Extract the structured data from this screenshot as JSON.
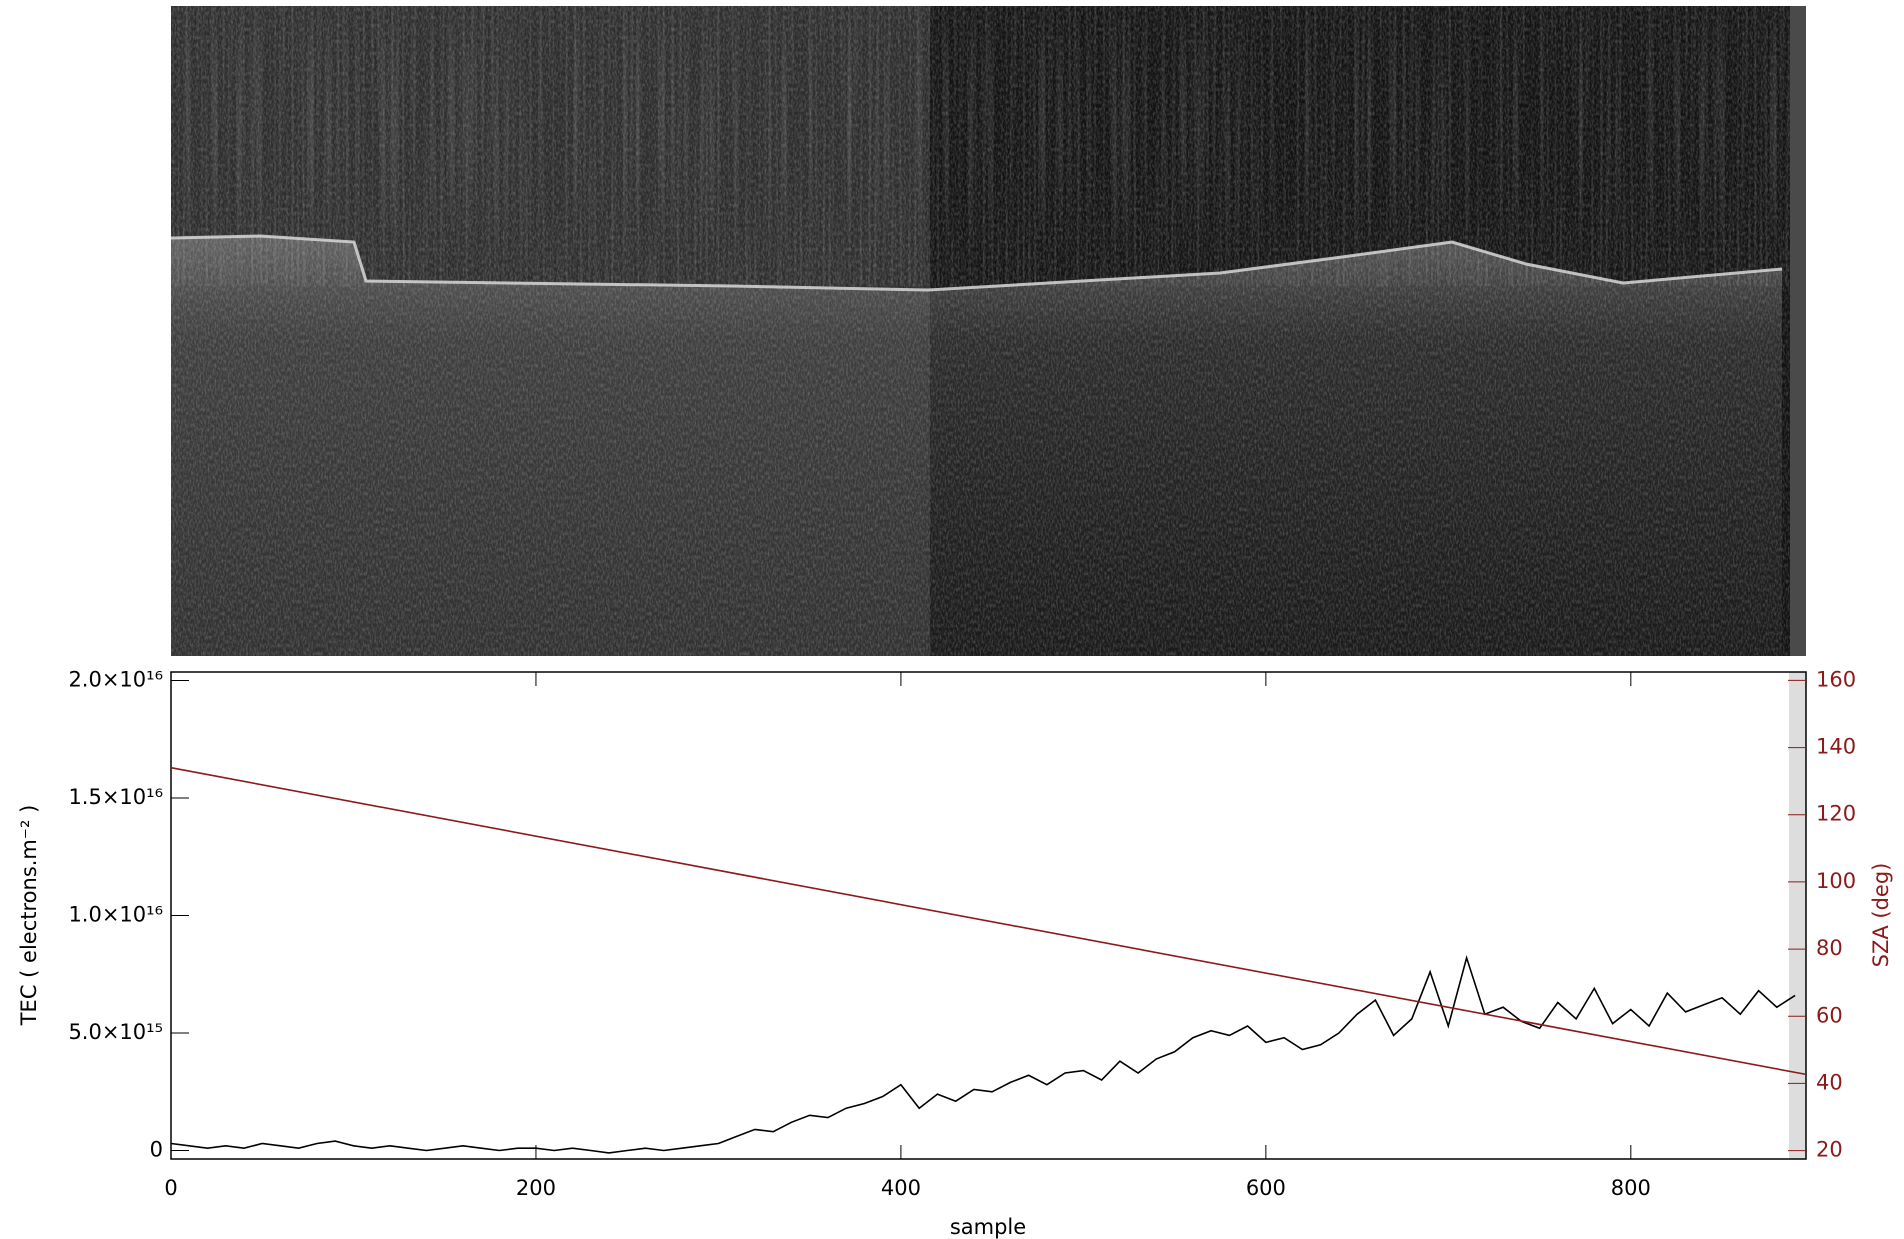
{
  "chart_data": {
    "type": "line",
    "xlabel": "sample",
    "ylabel": "TEC ( electrons.m⁻² )",
    "y2label": "SZA (deg)",
    "xlim": [
      0,
      896
    ],
    "xticks": [
      0,
      200,
      400,
      600,
      800
    ],
    "ylim": [
      -360000000000000.0,
      2.036e+16
    ],
    "yticks": [
      0,
      {
        "value": 5000000000000000.0,
        "label": "5.0×10¹⁵"
      },
      {
        "value": 1e+16,
        "label": "1.0×10¹⁶"
      },
      {
        "value": 1.5e+16,
        "label": "1.5×10¹⁶"
      },
      {
        "value": 2e+16,
        "label": "2.0×10¹⁶"
      }
    ],
    "y2lim": [
      17.5,
      162.5
    ],
    "y2ticks": [
      20,
      40,
      60,
      80,
      100,
      120,
      140,
      160
    ],
    "series": [
      {
        "color": "#000000",
        "x": [
          0,
          10,
          20,
          30,
          40,
          50,
          60,
          70,
          80,
          90,
          100,
          110,
          120,
          130,
          140,
          150,
          160,
          170,
          180,
          190,
          200,
          210,
          220,
          230,
          240,
          250,
          260,
          270,
          280,
          290,
          300,
          310,
          320,
          330,
          340,
          350,
          360,
          370,
          380,
          390,
          400,
          410,
          420,
          430,
          440,
          450,
          460,
          470,
          480,
          490,
          500,
          510,
          520,
          530,
          540,
          550,
          560,
          570,
          580,
          590,
          600,
          610,
          620,
          630,
          640,
          650,
          660,
          670,
          680,
          690,
          700,
          710,
          720,
          730,
          740,
          750,
          760,
          770,
          780,
          790,
          800,
          810,
          820,
          830,
          840,
          850,
          860,
          870,
          880,
          890
        ],
        "values": [
          300000000000000.0,
          200000000000000.0,
          100000000000000.0,
          200000000000000.0,
          100000000000000.0,
          300000000000000.0,
          200000000000000.0,
          100000000000000.0,
          300000000000000.0,
          400000000000000.0,
          200000000000000.0,
          100000000000000.0,
          200000000000000.0,
          100000000000000.0,
          0,
          100000000000000.0,
          200000000000000.0,
          100000000000000.0,
          0,
          100000000000000.0,
          100000000000000.0,
          0,
          100000000000000.0,
          0,
          -100000000000000.0,
          0,
          100000000000000.0,
          0,
          100000000000000.0,
          200000000000000.0,
          300000000000000.0,
          600000000000000.0,
          900000000000000.0,
          800000000000000.0,
          1200000000000000.0,
          1500000000000000.0,
          1400000000000000.0,
          1800000000000000.0,
          2000000000000000.0,
          2300000000000000.0,
          2800000000000000.0,
          1800000000000000.0,
          2400000000000000.0,
          2100000000000000.0,
          2600000000000000.0,
          2500000000000000.0,
          2900000000000000.0,
          3200000000000000.0,
          2800000000000000.0,
          3300000000000000.0,
          3400000000000000.0,
          3000000000000000.0,
          3800000000000000.0,
          3300000000000000.0,
          3900000000000000.0,
          4200000000000000.0,
          4800000000000000.0,
          5100000000000000.0,
          4900000000000000.0,
          5300000000000000.0,
          4600000000000000.0,
          4800000000000000.0,
          4300000000000000.0,
          4500000000000000.0,
          5000000000000000.0,
          5800000000000000.0,
          6400000000000000.0,
          4900000000000000.0,
          5600000000000000.0,
          7600000000000000.0,
          5300000000000000.0,
          8200000000000000.0,
          5800000000000000.0,
          6100000000000000.0,
          5500000000000000.0,
          5200000000000000.0,
          6300000000000000.0,
          5600000000000000.0,
          6900000000000000.0,
          5400000000000000.0,
          6000000000000000.0,
          5300000000000000.0,
          6700000000000000.0,
          5900000000000000.0,
          6200000000000000.0,
          6500000000000000.0,
          5800000000000000.0,
          6800000000000000.0,
          6100000000000000.0,
          6600000000000000.0
        ]
      },
      {
        "color": "#8b1a1a",
        "axis": "y2",
        "x": [
          0,
          896
        ],
        "values": [
          134,
          42.7
        ]
      }
    ]
  }
}
